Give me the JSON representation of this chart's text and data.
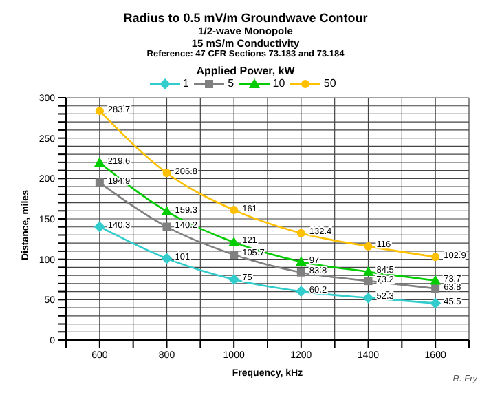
{
  "chart_data": {
    "type": "line",
    "title": "Radius to 0.5 mV/m Groundwave Contour",
    "subtitle": "1/2-wave Monopole\n15 mS/m Conductivity\nReference: 47 CFR Sections 73.183 and 73.184",
    "xlabel": "Frequency, kHz",
    "ylabel": "Distance, miles",
    "legend_title": "Applied Power, kW",
    "legend": "top",
    "grid": true,
    "data_labels": true,
    "x": [
      600,
      800,
      1000,
      1200,
      1400,
      1600
    ],
    "series": [
      {
        "name": "1",
        "color": "#33cccc",
        "marker": "diamond",
        "values": [
          140.3,
          101,
          75,
          60.2,
          52.3,
          45.5
        ]
      },
      {
        "name": "5",
        "color": "#808080",
        "marker": "square",
        "values": [
          194.9,
          140.2,
          105.7,
          83.8,
          73.2,
          63.8
        ]
      },
      {
        "name": "10",
        "color": "#00cc00",
        "marker": "triangle",
        "values": [
          219.6,
          159.3,
          121,
          97,
          84.5,
          73.7
        ]
      },
      {
        "name": "50",
        "color": "#ffc000",
        "marker": "circle",
        "values": [
          283.7,
          206.8,
          161,
          132.4,
          116,
          102.9
        ]
      }
    ],
    "xlim": [
      500,
      1700
    ],
    "xticks": [
      {
        "value": 500,
        "label": null
      },
      600,
      {
        "value": 700,
        "label": null
      },
      800,
      {
        "value": 900,
        "label": null
      },
      1000,
      {
        "value": 1100,
        "label": null
      },
      1200,
      {
        "value": 1300,
        "label": null
      },
      1400,
      {
        "value": 1500,
        "label": null
      },
      1600,
      {
        "value": 1700,
        "label": null
      }
    ],
    "ylim": [
      0,
      300
    ],
    "yticks": [
      0,
      {
        "value": 10,
        "label": null
      },
      {
        "value": 20,
        "label": null
      },
      {
        "value": 30,
        "label": null
      },
      {
        "value": 40,
        "label": null
      },
      50,
      {
        "value": 60,
        "label": null
      },
      {
        "value": 70,
        "label": null
      },
      {
        "value": 80,
        "label": null
      },
      {
        "value": 90,
        "label": null
      },
      100,
      {
        "value": 110,
        "label": null
      },
      {
        "value": 120,
        "label": null
      },
      {
        "value": 130,
        "label": null
      },
      {
        "value": 140,
        "label": null
      },
      150,
      {
        "value": 160,
        "label": null
      },
      {
        "value": 170,
        "label": null
      },
      {
        "value": 180,
        "label": null
      },
      {
        "value": 190,
        "label": null
      },
      200,
      {
        "value": 210,
        "label": null
      },
      {
        "value": 220,
        "label": null
      },
      {
        "value": 230,
        "label": null
      },
      {
        "value": 240,
        "label": null
      },
      250,
      {
        "value": 260,
        "label": null
      },
      {
        "value": 270,
        "label": null
      },
      {
        "value": 280,
        "label": null
      },
      {
        "value": 290,
        "label": null
      },
      300
    ],
    "annotations": [
      "R. Fry"
    ]
  }
}
